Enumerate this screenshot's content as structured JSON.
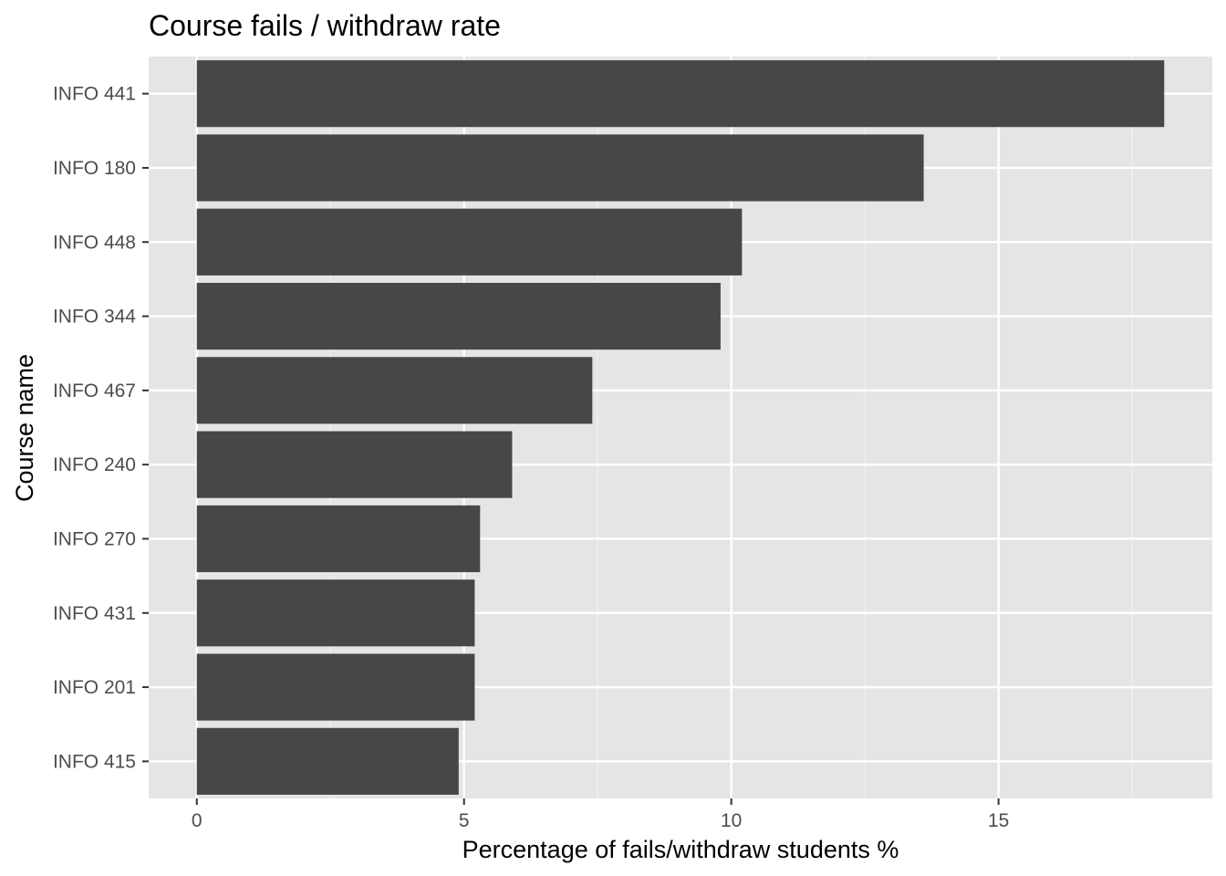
{
  "chart_data": {
    "type": "bar",
    "orientation": "horizontal",
    "title": "Course fails / withdraw rate",
    "xlabel": "Percentage of fails/withdraw students %",
    "ylabel": "Course name",
    "categories": [
      "INFO 441",
      "INFO 180",
      "INFO 448",
      "INFO 344",
      "INFO 467",
      "INFO 240",
      "INFO 270",
      "INFO 431",
      "INFO 201",
      "INFO 415"
    ],
    "values": [
      18.1,
      13.6,
      10.2,
      9.8,
      7.4,
      5.9,
      5.3,
      5.2,
      5.2,
      4.9
    ],
    "xlim": [
      -0.9,
      19.0
    ],
    "xticks": [
      0,
      5,
      10,
      15
    ],
    "xtick_labels": [
      "0",
      "5",
      "10",
      "15"
    ],
    "grid": true,
    "colors": {
      "bar": "#474747",
      "panel": "#e5e5e5",
      "grid_major": "#ffffff",
      "grid_minor": "#f2f2f2"
    }
  }
}
